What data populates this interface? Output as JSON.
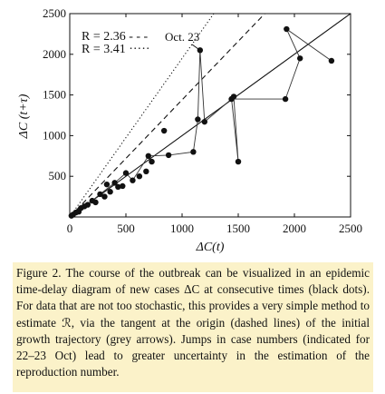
{
  "chart_data": {
    "type": "scatter",
    "xlabel": "ΔC(t)",
    "ylabel": "ΔC (t+τ)",
    "xlim": [
      0,
      2500
    ],
    "ylim": [
      0,
      2500
    ],
    "xticks": [
      0,
      500,
      1000,
      1500,
      2000,
      2500
    ],
    "yticks": [
      500,
      1000,
      1500,
      2000,
      2500
    ],
    "grid": false,
    "legend_position": "top-left",
    "points": [
      [
        15,
        15
      ],
      [
        30,
        30
      ],
      [
        55,
        55
      ],
      [
        80,
        65
      ],
      [
        100,
        110
      ],
      [
        130,
        130
      ],
      [
        160,
        150
      ],
      [
        200,
        200
      ],
      [
        230,
        180
      ],
      [
        270,
        280
      ],
      [
        310,
        250
      ],
      [
        330,
        400
      ],
      [
        360,
        310
      ],
      [
        400,
        420
      ],
      [
        430,
        370
      ],
      [
        470,
        380
      ],
      [
        500,
        540
      ],
      [
        560,
        450
      ],
      [
        620,
        500
      ],
      [
        680,
        560
      ],
      [
        700,
        750
      ],
      [
        730,
        680
      ],
      [
        840,
        1060
      ],
      [
        880,
        760
      ],
      [
        1100,
        800
      ],
      [
        1140,
        1200
      ],
      [
        1160,
        2050
      ],
      [
        1200,
        1170
      ],
      [
        1440,
        1450
      ],
      [
        1460,
        1480
      ],
      [
        1500,
        680
      ],
      [
        1920,
        1450
      ],
      [
        1930,
        2310
      ],
      [
        2050,
        1950
      ],
      [
        2330,
        1920
      ]
    ],
    "connected_path": [
      [
        15,
        15
      ],
      [
        80,
        65
      ],
      [
        130,
        130
      ],
      [
        200,
        200
      ],
      [
        270,
        280
      ],
      [
        400,
        420
      ],
      [
        500,
        540
      ],
      [
        560,
        450
      ],
      [
        700,
        750
      ],
      [
        880,
        760
      ],
      [
        1100,
        800
      ],
      [
        1140,
        1200
      ],
      [
        1160,
        2050
      ],
      [
        1200,
        1170
      ],
      [
        1440,
        1450
      ],
      [
        1460,
        1480
      ],
      [
        1500,
        680
      ],
      [
        1440,
        1450
      ],
      [
        1920,
        1450
      ],
      [
        2050,
        1950
      ],
      [
        1930,
        2310
      ],
      [
        2330,
        1920
      ]
    ],
    "reference_lines": [
      {
        "label": "R = 2.36",
        "slope": 1.44,
        "style": "dashed"
      },
      {
        "label": "R = 3.41",
        "slope": 1.95,
        "style": "dotted"
      },
      {
        "label": "",
        "slope": 1.0,
        "style": "solid"
      }
    ],
    "annotations": [
      {
        "text": "Oct. 23",
        "target": [
          1160,
          2050
        ]
      }
    ]
  },
  "legend": {
    "line1": "R = 2.36 - - -",
    "line2": "R = 3.41 ·····"
  },
  "caption": "Figure 2. The course of the outbreak can be visualized in an epidemic time-delay diagram of new cases ΔC at consecutive times (black dots). For data that are not too stochastic, this provides a very simple method to estimate ℛ, via the tangent at the origin (dashed lines) of the initial growth trajectory (grey arrows). Jumps in case numbers (indicated for 22–23 Oct) lead to greater uncertainty in the estimation of the reproduction number."
}
